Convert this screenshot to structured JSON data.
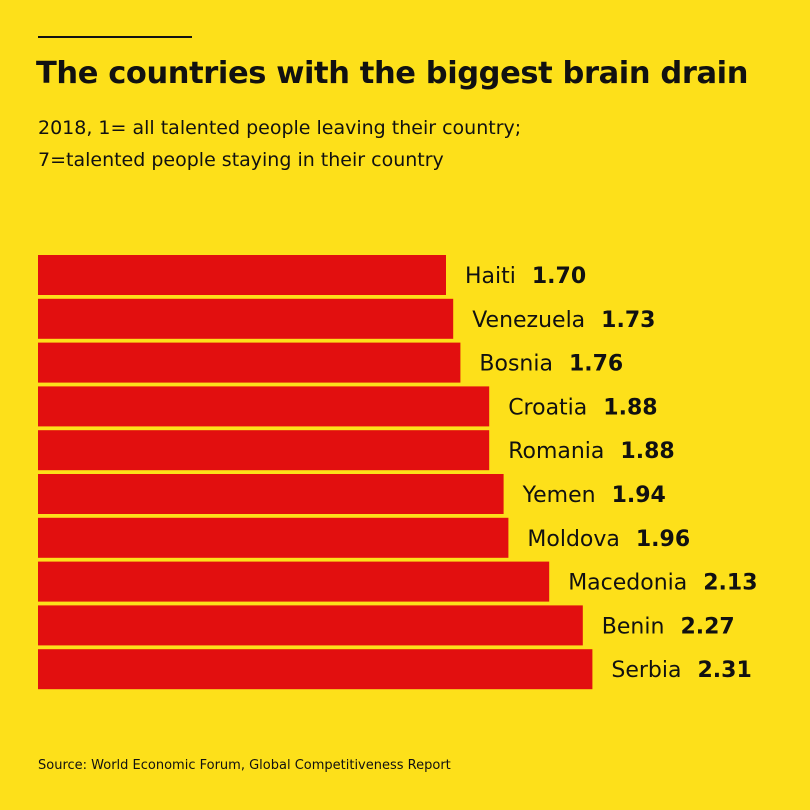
{
  "header": {
    "title": "The countries with the biggest brain drain",
    "subtitle_line1": "2018, 1= all talented people leaving their country;",
    "subtitle_line2": "7=talented people staying in their country"
  },
  "footer": {
    "source": "Source: World Economic Forum, Global Competitiveness Report"
  },
  "colors": {
    "background": "#FDE01A",
    "bar": "#E20F0F",
    "text": "#111111"
  },
  "chart_data": {
    "type": "bar",
    "orientation": "horizontal",
    "title": "The countries with the biggest brain drain",
    "subtitle": "2018, 1= all talented people leaving their country; 7=talented people staying in their country",
    "categories": [
      "Haiti",
      "Venezuela",
      "Bosnia",
      "Croatia",
      "Romania",
      "Yemen",
      "Moldova",
      "Macedonia",
      "Benin",
      "Serbia"
    ],
    "values": [
      1.7,
      1.73,
      1.76,
      1.88,
      1.88,
      1.94,
      1.96,
      2.13,
      2.27,
      2.31
    ],
    "value_labels": [
      "1.70",
      "1.73",
      "1.76",
      "1.88",
      "1.88",
      "1.94",
      "1.96",
      "2.13",
      "2.27",
      "2.31"
    ],
    "xlabel": "",
    "ylabel": "",
    "grid": false,
    "legend": "none"
  }
}
